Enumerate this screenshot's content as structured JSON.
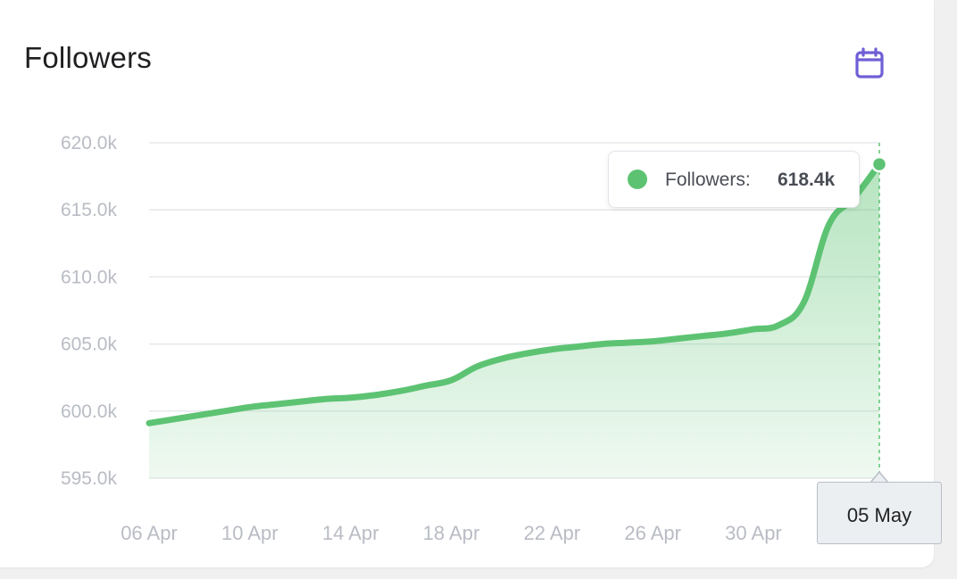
{
  "card": {
    "title": "Followers",
    "calendar_icon": "calendar-icon"
  },
  "colors": {
    "line": "#5dc373",
    "accent": "#6f5fd6",
    "grid": "#e7e8ec"
  },
  "tooltip": {
    "label": "Followers:",
    "value": "618.4k"
  },
  "crosshair_label": "05 May",
  "chart_data": {
    "type": "area",
    "title": "Followers",
    "xlabel": "",
    "ylabel": "",
    "ylim": [
      595000,
      620000
    ],
    "grid": true,
    "yticks": [
      595000,
      600000,
      605000,
      610000,
      615000,
      620000
    ],
    "ytick_labels": [
      "595.0k",
      "600.0k",
      "605.0k",
      "610.0k",
      "615.0k",
      "620.0k"
    ],
    "xtick_labels": [
      "06 Apr",
      "10 Apr",
      "14 Apr",
      "18 Apr",
      "22 Apr",
      "26 Apr",
      "30 Apr"
    ],
    "x": [
      "06 Apr",
      "07 Apr",
      "08 Apr",
      "09 Apr",
      "10 Apr",
      "11 Apr",
      "12 Apr",
      "13 Apr",
      "14 Apr",
      "15 Apr",
      "16 Apr",
      "17 Apr",
      "18 Apr",
      "19 Apr",
      "20 Apr",
      "21 Apr",
      "22 Apr",
      "23 Apr",
      "24 Apr",
      "25 Apr",
      "26 Apr",
      "27 Apr",
      "28 Apr",
      "29 Apr",
      "30 Apr",
      "01 May",
      "02 May",
      "03 May",
      "04 May",
      "05 May"
    ],
    "series": [
      {
        "name": "Followers",
        "values": [
          599100,
          599400,
          599700,
          600000,
          600300,
          600500,
          600700,
          600900,
          601000,
          601200,
          601500,
          601900,
          602300,
          603300,
          603900,
          604300,
          604600,
          604800,
          605000,
          605100,
          605200,
          605400,
          605600,
          605800,
          606100,
          606400,
          608100,
          613900,
          615900,
          618400
        ]
      }
    ]
  }
}
